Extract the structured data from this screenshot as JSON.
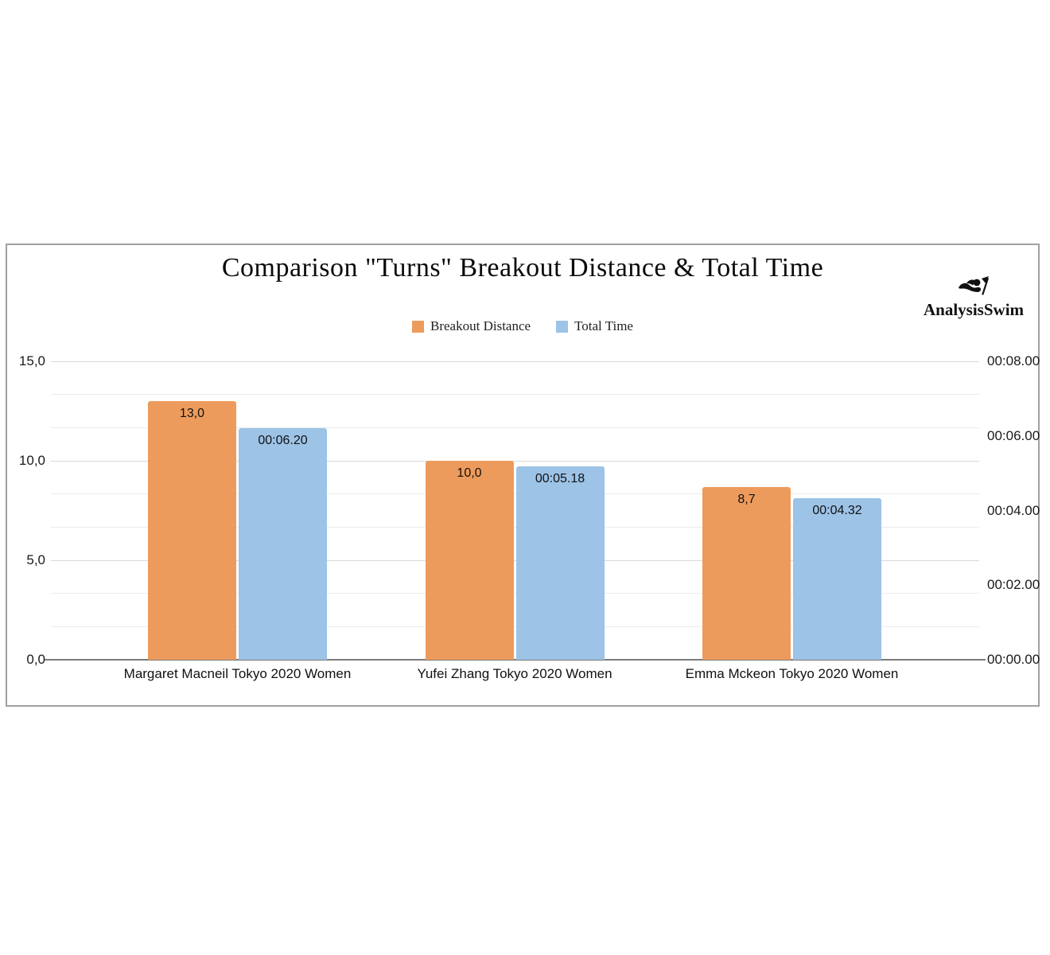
{
  "chart": {
    "title": "Comparison \"Turns\" Breakout Distance & Total Time",
    "brand": {
      "name": "AnalysisSwim",
      "icon": "swimmer-icon"
    },
    "legend": {
      "items": [
        {
          "label": "Breakout Distance",
          "color": "#ED9B5C"
        },
        {
          "label": "Total Time",
          "color": "#9DC3E7"
        }
      ]
    }
  },
  "chart_data": {
    "type": "bar",
    "title": "Comparison \"Turns\" Breakout Distance & Total Time",
    "categories": [
      "Margaret Macneil Tokyo 2020 Women",
      "Yufei Zhang Tokyo 2020 Women",
      "Emma Mckeon Tokyo 2020 Women"
    ],
    "series": [
      {
        "name": "Breakout Distance",
        "axis": "left",
        "unit": "m",
        "color": "#ED9B5C",
        "values": [
          13.0,
          10.0,
          8.7
        ],
        "labels": [
          "13,0",
          "10,0",
          "8,7"
        ]
      },
      {
        "name": "Total Time",
        "axis": "right",
        "unit": "s",
        "color": "#9DC3E7",
        "values": [
          6.2,
          5.18,
          4.32
        ],
        "labels": [
          "00:06.20",
          "00:05.18",
          "00:04.32"
        ]
      }
    ],
    "left_axis": {
      "range": [
        0,
        15
      ],
      "ticks": [
        {
          "value": 15,
          "label": "15,0"
        },
        {
          "value": 10,
          "label": "10,0"
        },
        {
          "value": 5,
          "label": "5,0"
        },
        {
          "value": 0,
          "label": "0,0"
        }
      ]
    },
    "right_axis": {
      "range": [
        0,
        8
      ],
      "ticks": [
        {
          "value": 8,
          "label": "00:08.00"
        },
        {
          "value": 6,
          "label": "00:06.00"
        },
        {
          "value": 4,
          "label": "00:04.00"
        },
        {
          "value": 2,
          "label": "00:02.00"
        },
        {
          "value": 0,
          "label": "00:00.00"
        }
      ]
    },
    "grid": {
      "lines": 10,
      "major_every": 3,
      "on": true
    },
    "legend_position": "top-center"
  }
}
